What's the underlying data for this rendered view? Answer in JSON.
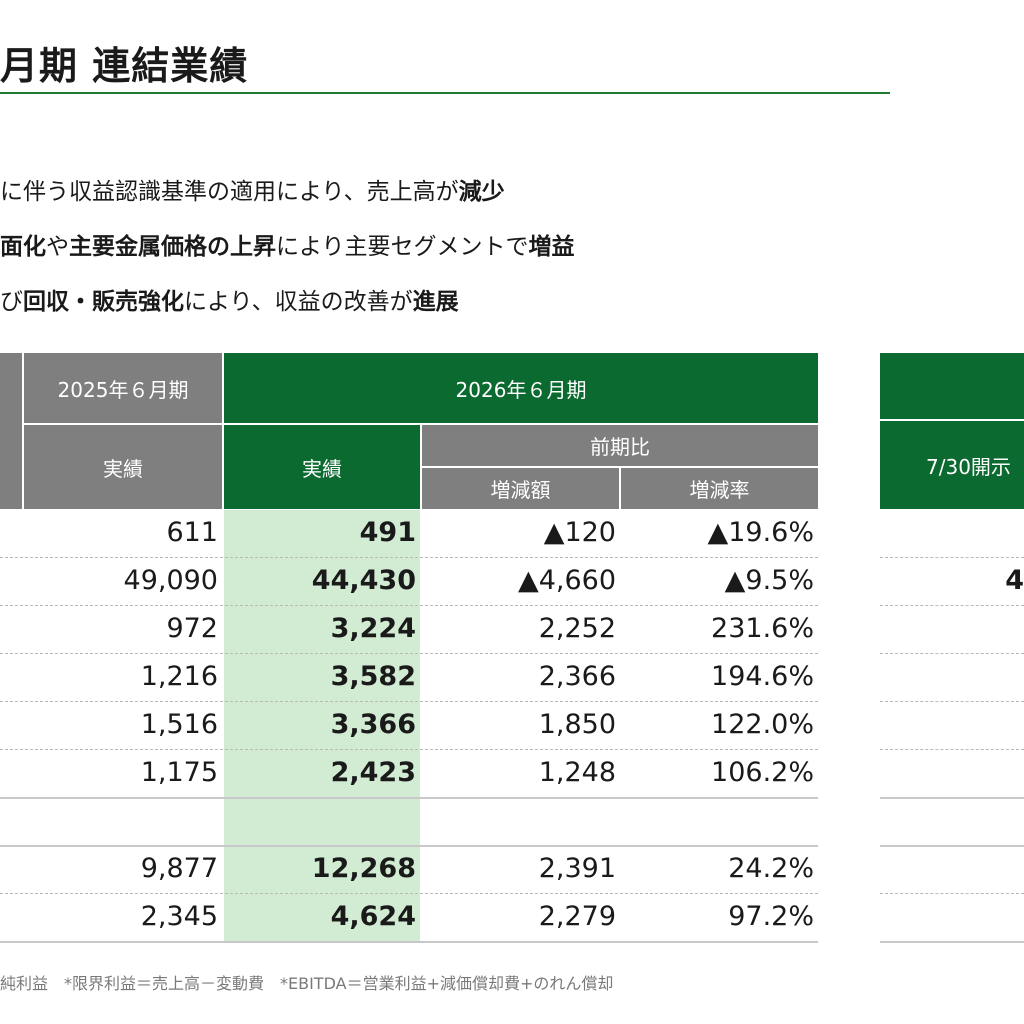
{
  "title": "月期 連結業績",
  "bullets": [
    [
      {
        "t": "に伴う収益認識基準の適用により、売上高が",
        "b": false
      },
      {
        "t": "減少",
        "b": true
      }
    ],
    [
      {
        "t": "面化",
        "b": true
      },
      {
        "t": "や",
        "b": false
      },
      {
        "t": "主要金属価格の上昇",
        "b": true
      },
      {
        "t": "により主要セグメントで",
        "b": false
      },
      {
        "t": "増益",
        "b": true
      }
    ],
    [
      {
        "t": "び",
        "b": false
      },
      {
        "t": "回収・販売強化",
        "b": true
      },
      {
        "t": "により、収益の改善が",
        "b": false
      },
      {
        "t": "進展",
        "b": true
      }
    ]
  ],
  "table": {
    "header_2025": "2025年６月期",
    "header_2026": "2026年６月期",
    "sub_actual_2025": "実績",
    "sub_actual_2026": "実績",
    "sub_yoy": "前期比",
    "sub_change": "増減額",
    "sub_rate": "増減率",
    "rows": [
      {
        "prev": "611",
        "curr": "491",
        "diff": "▲120",
        "rate": "▲19.6%"
      },
      {
        "prev": "49,090",
        "curr": "44,430",
        "diff": "▲4,660",
        "rate": "▲9.5%"
      },
      {
        "prev": "972",
        "curr": "3,224",
        "diff": "2,252",
        "rate": "231.6%"
      },
      {
        "prev": "1,216",
        "curr": "3,582",
        "diff": "2,366",
        "rate": "194.6%"
      },
      {
        "prev": "1,516",
        "curr": "3,366",
        "diff": "1,850",
        "rate": "122.0%"
      },
      {
        "prev": "1,175",
        "curr": "2,423",
        "diff": "1,248",
        "rate": "106.2%"
      },
      {
        "prev": "9,877",
        "curr": "12,268",
        "diff": "2,391",
        "rate": "24.2%"
      },
      {
        "prev": "2,345",
        "curr": "4,624",
        "diff": "2,279",
        "rate": "97.2%"
      }
    ]
  },
  "right_table": {
    "subheader": "7/30開示",
    "row2_value": "4"
  },
  "footnote": "純利益　*限界利益＝売上高－変動費　*EBITDA＝営業利益+減価償却費+のれん償却",
  "colors": {
    "green": "#0b6a30",
    "gray": "#7f7f7f",
    "highlight": "#d2ecd4",
    "rule": "#1f7a33"
  }
}
